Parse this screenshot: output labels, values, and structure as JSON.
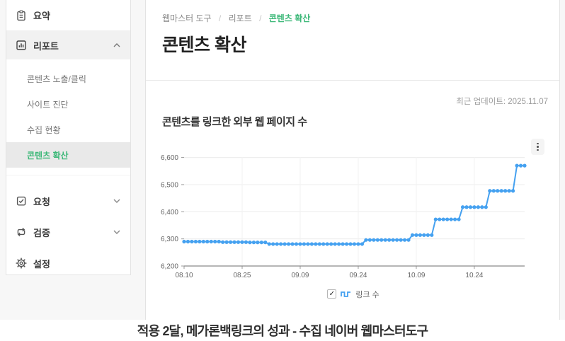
{
  "colors": {
    "accent_green": "#3cb878",
    "line_blue": "#45a1f0",
    "selected_row_bg": "#e9e9e9"
  },
  "sidebar": {
    "items": [
      {
        "label": "요약"
      },
      {
        "label": "리포트"
      }
    ],
    "subitems": [
      {
        "label": "콘텐츠 노출/클릭"
      },
      {
        "label": "사이트 진단"
      },
      {
        "label": "수집 현황"
      },
      {
        "label": "콘텐츠 확산",
        "selected": true
      }
    ],
    "bottom_items": [
      {
        "label": "요청"
      },
      {
        "label": "검증"
      },
      {
        "label": "설정"
      }
    ]
  },
  "breadcrumb": {
    "items": [
      "웹마스터 도구",
      "리포트",
      "콘텐츠 확산"
    ],
    "separator": "/"
  },
  "page": {
    "title": "콘텐츠 확산"
  },
  "report": {
    "last_update": "최근 업데이트: 2025.11.07",
    "chart_title": "콘텐츠를 링크한 외부 웹 페이지 수"
  },
  "legend": {
    "label": "링크 수",
    "checked": true,
    "checkmark": "✓"
  },
  "caption": {
    "text": "적용 2달, 메가론백링크의 성과 - 수집 네이버 웹마스터도구"
  },
  "chart_data": {
    "type": "line",
    "series_name": "링크 수",
    "interval": "daily",
    "date_range": [
      "08.10",
      "11.07"
    ],
    "x_tick_labels": [
      "08.10",
      "08.25",
      "09.09",
      "09.24",
      "10.09",
      "10.24"
    ],
    "x_tick_indices": [
      0,
      15,
      30,
      45,
      60,
      75
    ],
    "ylim": [
      6200,
      6600
    ],
    "y_ticks": [
      6200,
      6300,
      6400,
      6500,
      6600
    ],
    "y_tick_labels": [
      "6,200",
      "6,300",
      "6,400",
      "6,500",
      "6,600"
    ],
    "grid": true,
    "legend_position": "bottom",
    "values": [
      6290,
      6290,
      6290,
      6290,
      6290,
      6290,
      6290,
      6290,
      6290,
      6290,
      6288,
      6288,
      6288,
      6288,
      6288,
      6288,
      6288,
      6287,
      6287,
      6287,
      6287,
      6287,
      6281,
      6281,
      6281,
      6281,
      6281,
      6281,
      6281,
      6281,
      6281,
      6281,
      6281,
      6281,
      6281,
      6281,
      6281,
      6281,
      6281,
      6281,
      6281,
      6281,
      6281,
      6281,
      6281,
      6281,
      6281,
      6296,
      6296,
      6296,
      6296,
      6296,
      6296,
      6296,
      6296,
      6296,
      6296,
      6296,
      6296,
      6314,
      6314,
      6314,
      6314,
      6314,
      6314,
      6372,
      6372,
      6372,
      6372,
      6372,
      6372,
      6372,
      6417,
      6417,
      6417,
      6417,
      6417,
      6417,
      6417,
      6477,
      6477,
      6477,
      6477,
      6477,
      6477,
      6477,
      6570,
      6570,
      6570
    ]
  }
}
